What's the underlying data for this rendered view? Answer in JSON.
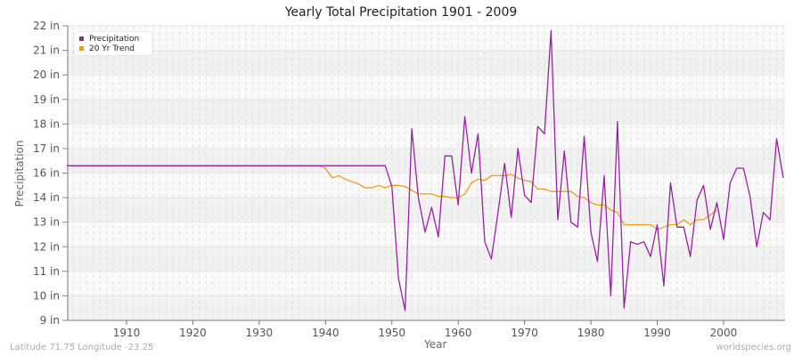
{
  "chart_data": {
    "type": "line",
    "title": "Yearly Total Precipitation 1901 - 2009",
    "xlabel": "Year",
    "ylabel": "Precipitation",
    "xlim": [
      1901,
      2009
    ],
    "x_ticks": [
      1910,
      1920,
      1930,
      1940,
      1950,
      1960,
      1970,
      1980,
      1990,
      2000
    ],
    "y_tick_labels": [
      "22 in",
      "21 in",
      "20 in",
      "19 in",
      "18 in",
      "17 in",
      "16 in",
      "14 in",
      "13 in",
      "12 in",
      "11 in",
      "10 in",
      "9 in"
    ],
    "y_tick_values": [
      22,
      21,
      20,
      19,
      18,
      17,
      16,
      14,
      13,
      12,
      11,
      10,
      9
    ],
    "grid": true,
    "legend_position": "top-left",
    "series": [
      {
        "name": "Precipitation",
        "color": "#9b1fa8",
        "start_year": 1901,
        "values": [
          16.3,
          16.3,
          16.3,
          16.3,
          16.3,
          16.3,
          16.3,
          16.3,
          16.3,
          16.3,
          16.3,
          16.3,
          16.3,
          16.3,
          16.3,
          16.3,
          16.3,
          16.3,
          16.3,
          16.3,
          16.3,
          16.3,
          16.3,
          16.3,
          16.3,
          16.3,
          16.3,
          16.3,
          16.3,
          16.3,
          16.3,
          16.3,
          16.3,
          16.3,
          16.3,
          16.3,
          16.3,
          16.3,
          16.3,
          16.3,
          16.3,
          16.3,
          16.3,
          16.3,
          16.3,
          16.3,
          16.3,
          16.3,
          16.3,
          14.9,
          10.7,
          9.4,
          17.8,
          14.0,
          12.6,
          13.6,
          12.4,
          16.7,
          16.7,
          13.7,
          18.3,
          16.0,
          17.6,
          12.2,
          11.5,
          13.4,
          16.4,
          13.2,
          17.0,
          14.2,
          13.8,
          17.9,
          17.6,
          21.8,
          13.1,
          16.9,
          13.0,
          12.8,
          17.5,
          12.6,
          11.4,
          15.8,
          10.0,
          18.1,
          9.5,
          12.2,
          12.1,
          12.2,
          11.6,
          12.9,
          10.4,
          15.2,
          12.8,
          12.8,
          11.6,
          13.9,
          15.0,
          12.7,
          13.8,
          12.3,
          15.2,
          16.2,
          16.2,
          14.1,
          12.0,
          13.4,
          13.1,
          17.4,
          15.6
        ]
      },
      {
        "name": "20 Yr Trend",
        "color": "#f59a1b",
        "start_year": 1901,
        "values": [
          16.3,
          16.3,
          16.3,
          16.3,
          16.3,
          16.3,
          16.3,
          16.3,
          16.3,
          16.3,
          16.3,
          16.3,
          16.3,
          16.3,
          16.3,
          16.3,
          16.3,
          16.3,
          16.3,
          16.3,
          16.3,
          16.3,
          16.3,
          16.3,
          16.3,
          16.3,
          16.3,
          16.3,
          16.3,
          16.3,
          16.3,
          16.3,
          16.3,
          16.3,
          16.3,
          16.3,
          16.3,
          16.3,
          16.3,
          16.2,
          15.6,
          15.8,
          15.5,
          15.3,
          15.1,
          14.8,
          14.8,
          15.0,
          14.8,
          15.0,
          15.0,
          14.9,
          14.6,
          14.3,
          14.3,
          14.3,
          14.1,
          14.1,
          14.0,
          14.0,
          14.3,
          15.2,
          15.5,
          15.4,
          15.8,
          15.8,
          15.8,
          15.9,
          15.6,
          15.4,
          15.3,
          14.7,
          14.7,
          14.5,
          14.5,
          14.5,
          14.5,
          14.1,
          14.0,
          13.8,
          13.7,
          13.7,
          13.5,
          13.4,
          12.9,
          12.9,
          12.9,
          12.9,
          12.9,
          12.7,
          12.8,
          12.9,
          12.9,
          13.1,
          12.9,
          13.1,
          13.1,
          13.3,
          13.5
        ]
      }
    ]
  },
  "footer": {
    "location": "Latitude 71.75 Longitude -23.25",
    "source": "worldspecies.org"
  }
}
